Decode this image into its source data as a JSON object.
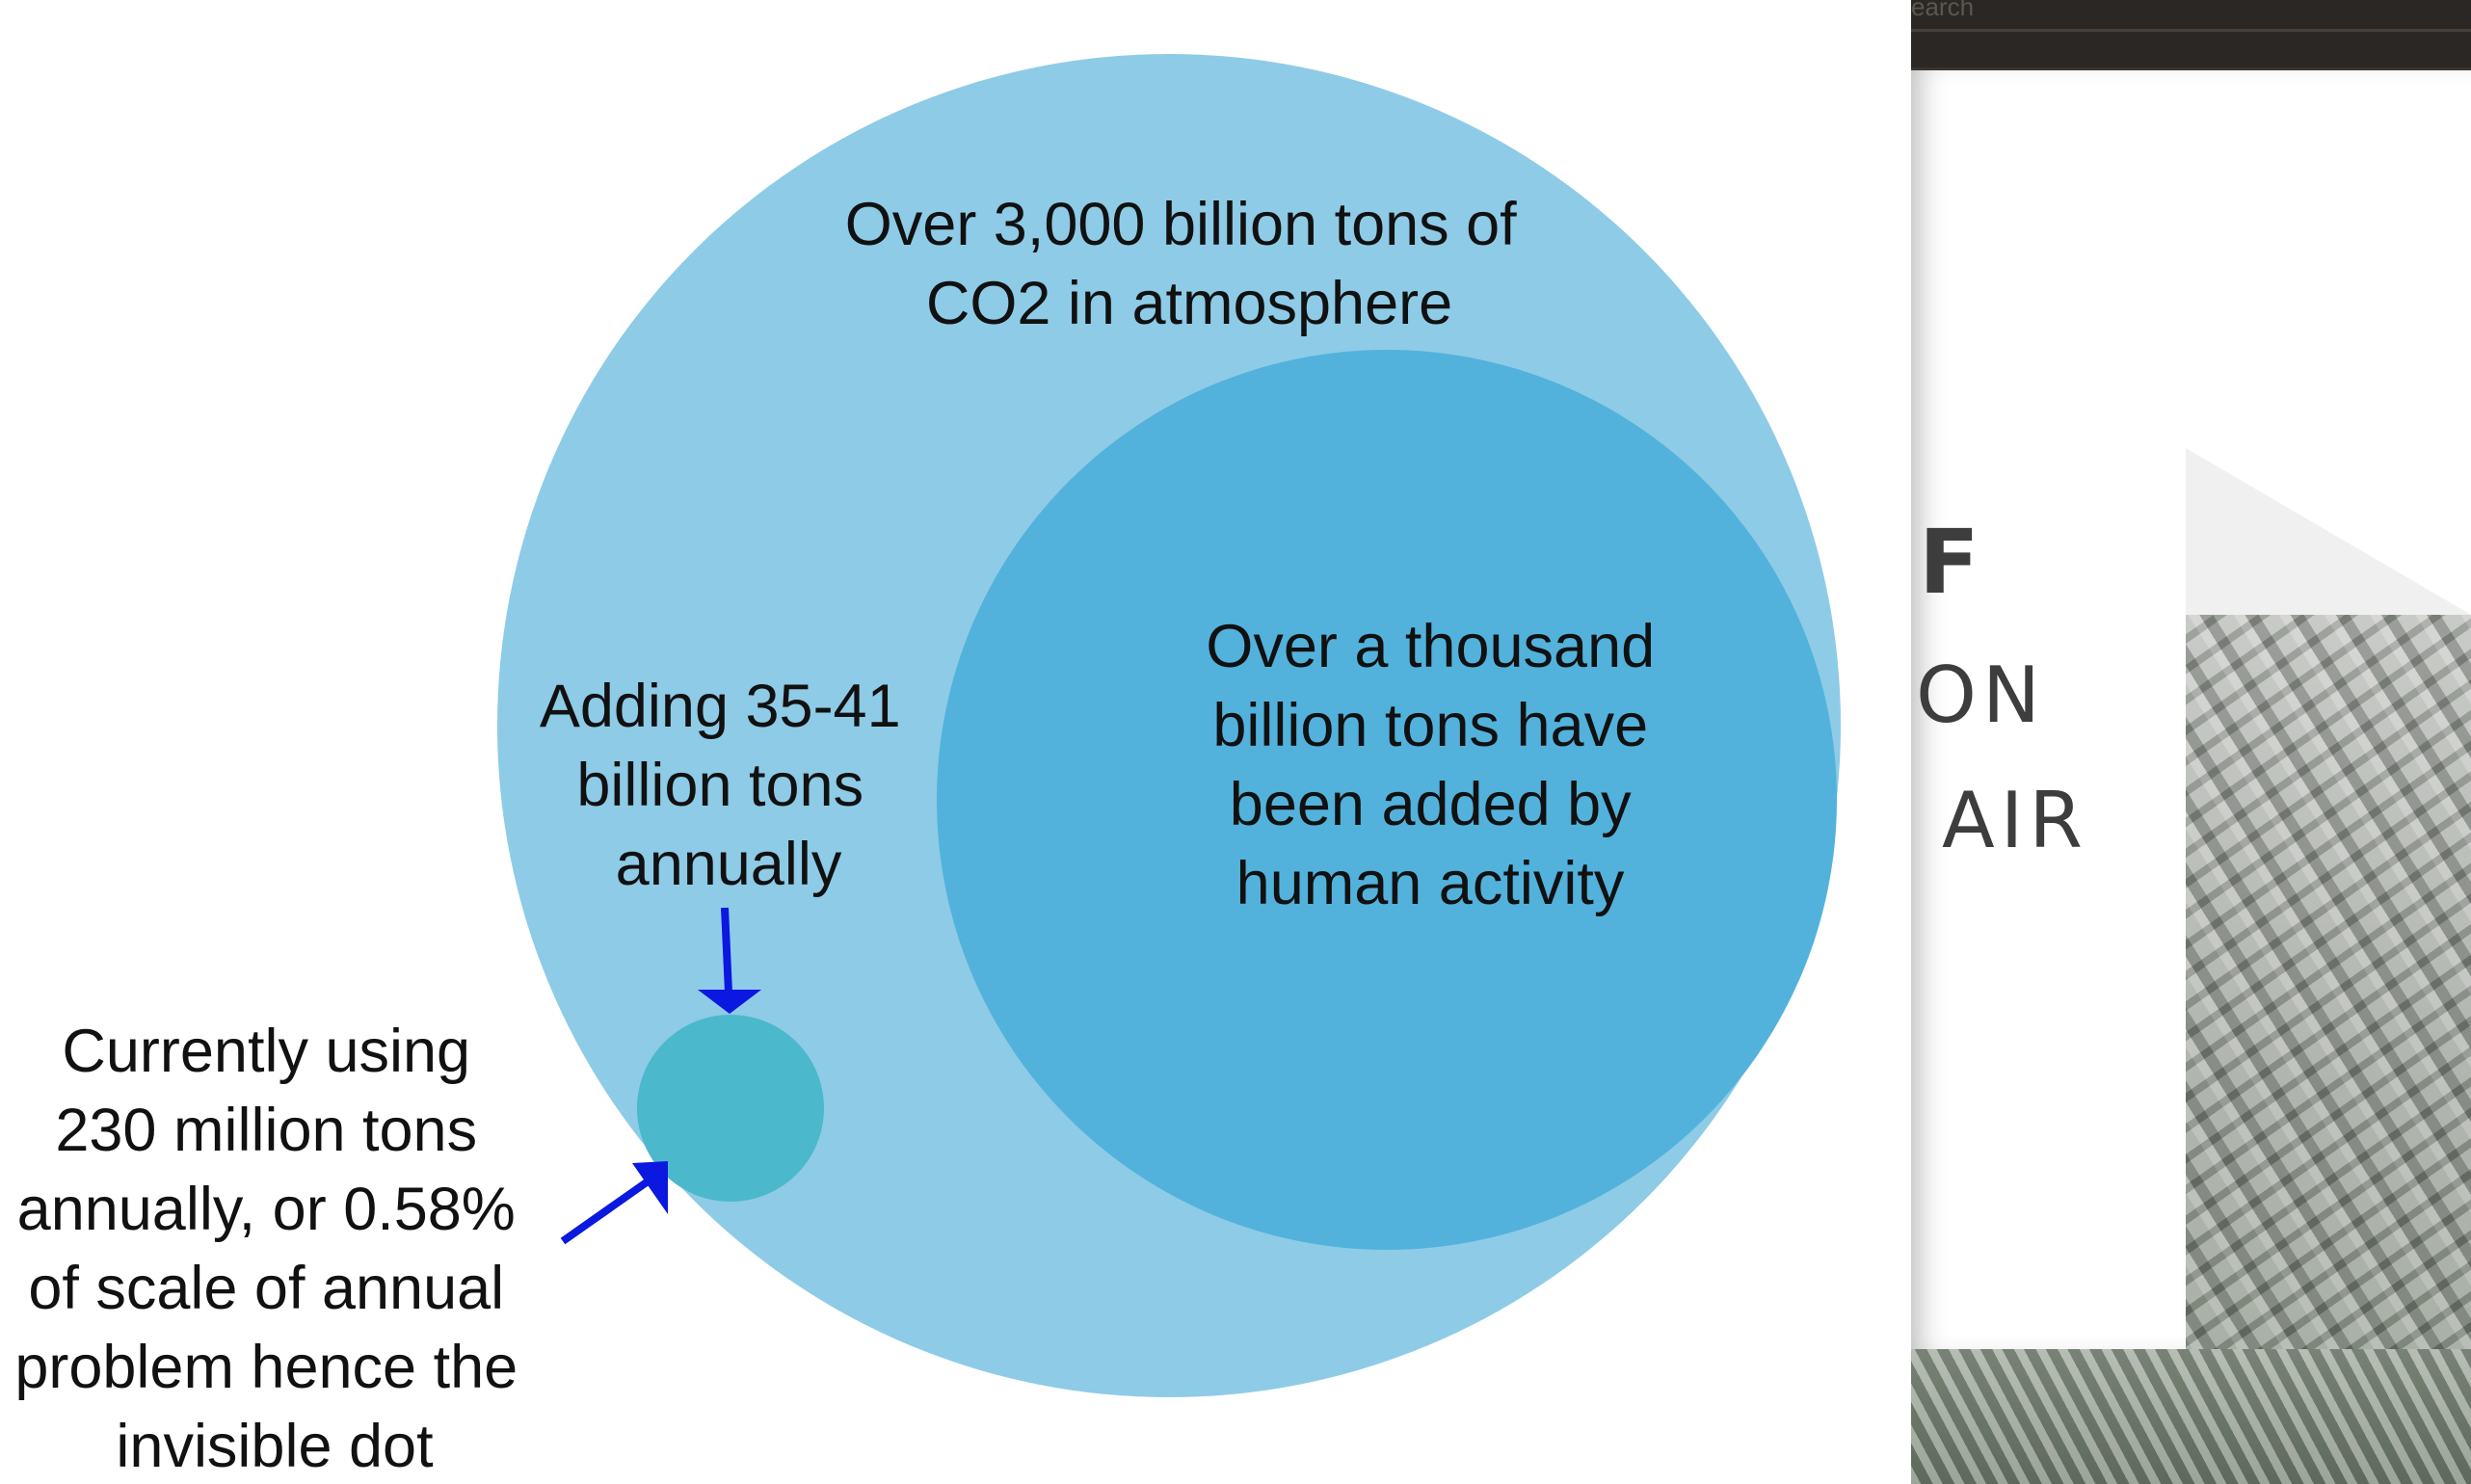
{
  "diagram": {
    "outer_label": [
      "Over 3,000 billion tons of",
      "CO2 in atmosphere"
    ],
    "inner_label": [
      "Over a thousand",
      "billion tons have",
      "been added by",
      "human activity"
    ],
    "annual_label": [
      "Adding 35-41",
      "billion tons",
      "annually"
    ],
    "usage_label": [
      "Currently using",
      "230 million tons",
      "annually, or 0.58%",
      "of scale of annual",
      "problem hence the",
      "invisible dot"
    ],
    "colors": {
      "outer_circle": "#8ecbe7",
      "inner_circle": "#52b2dc",
      "small_dot": "#4bb8cc",
      "arrows": "#0a18e0"
    }
  },
  "side_window": {
    "search_text": "earch",
    "hero_lines": [
      "F",
      "ON",
      "AIR"
    ]
  }
}
